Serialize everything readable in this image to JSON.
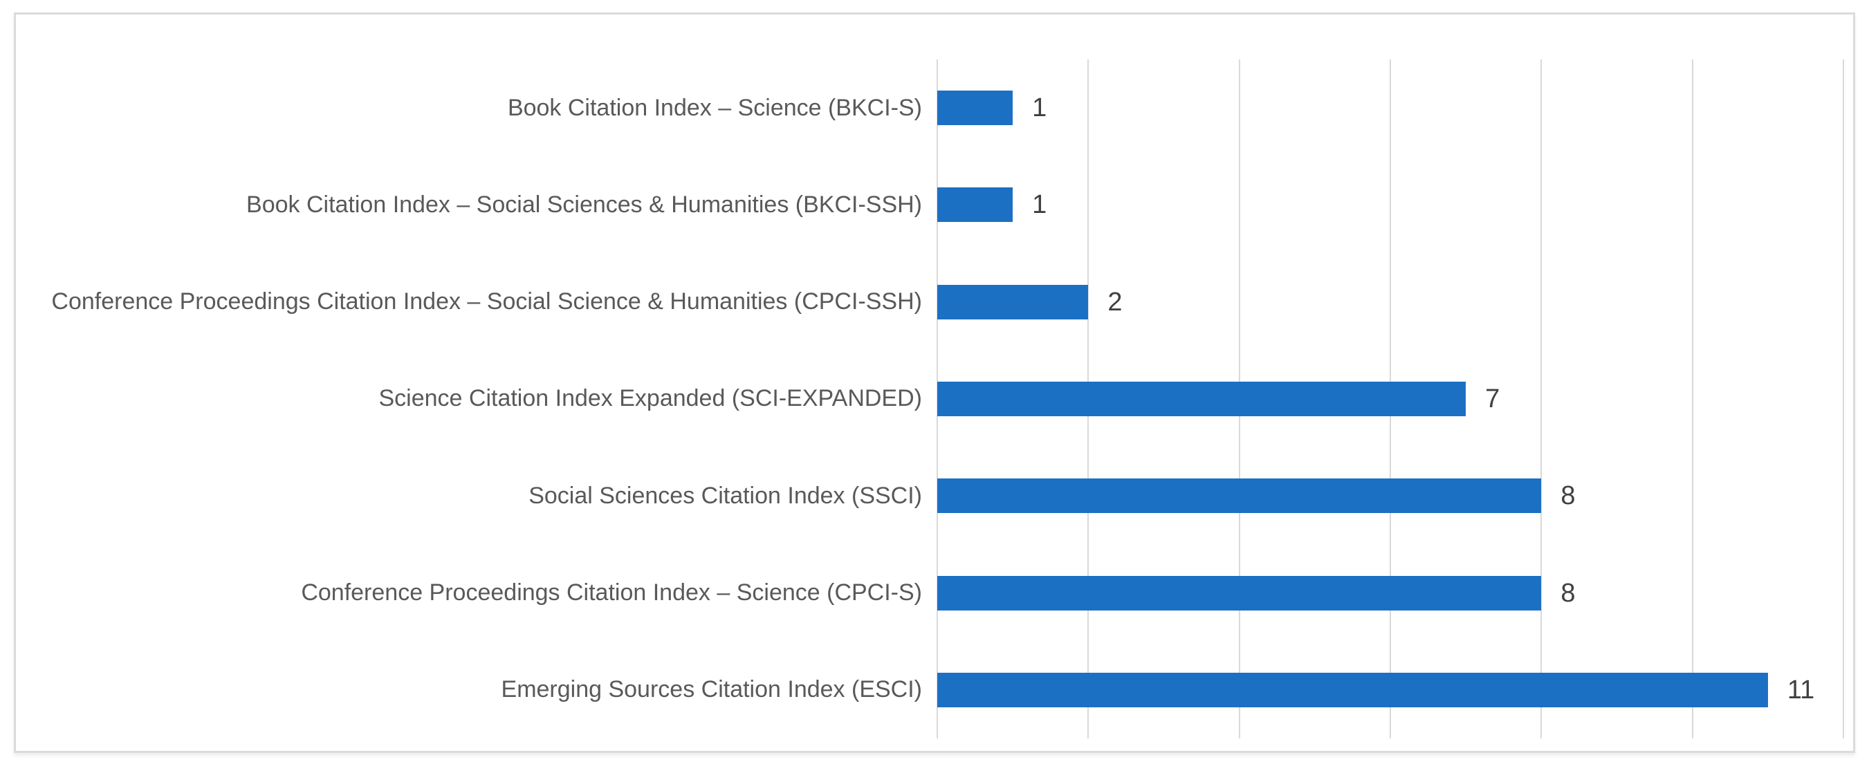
{
  "chart_data": {
    "type": "bar",
    "orientation": "horizontal",
    "title": "",
    "xlabel": "",
    "ylabel": "",
    "categories": [
      "Book Citation Index – Science (BKCI-S)",
      "Book Citation Index – Social Sciences & Humanities (BKCI-SSH)",
      "Conference Proceedings Citation Index – Social Science & Humanities (CPCI-SSH)",
      "Science Citation Index Expanded (SCI-EXPANDED)",
      "Social Sciences Citation Index (SSCI)",
      "Conference Proceedings Citation Index – Science (CPCI-S)",
      "Emerging Sources Citation Index (ESCI)"
    ],
    "values": [
      1,
      1,
      2,
      7,
      8,
      8,
      11
    ],
    "data_labels": [
      "1",
      "1",
      "2",
      "7",
      "8",
      "8",
      "11"
    ],
    "xlim": [
      0,
      12
    ],
    "gridline_interval": 2,
    "grid": "vertical-gridlines-only",
    "legend": "none",
    "axis_tick_labels_visible": false,
    "colors": {
      "bar": "#1B70C4",
      "gridline": "#D9D9D9",
      "category_label": "#595959",
      "value_label": "#404040",
      "figure_border": "#DBDBDB",
      "background": "#FFFFFF"
    }
  }
}
